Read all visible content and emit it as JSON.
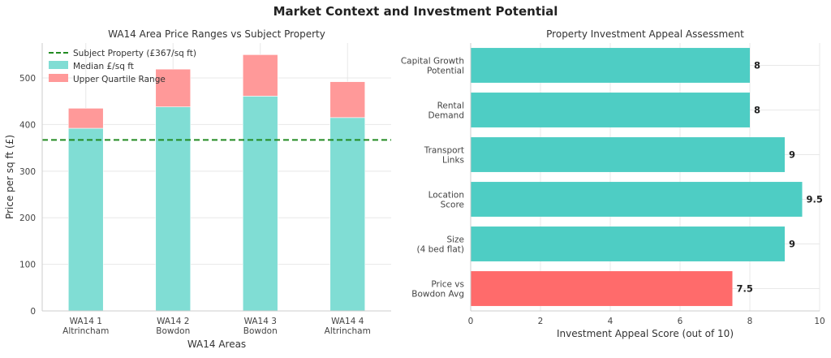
{
  "title": "Market Context and Investment Potential",
  "chart_data": [
    {
      "type": "bar",
      "title": "WA14 Area Price Ranges vs Subject Property",
      "xlabel": "WA14 Areas",
      "ylabel": "Price per sq ft (£)",
      "categories": [
        "WA14 1\nAltrincham",
        "WA14 2\nBowdon",
        "WA14 3\nBowdon",
        "WA14 4\nAltrincham"
      ],
      "stacked": true,
      "series": [
        {
          "name": "Median £/sq ft",
          "values": [
            392,
            438,
            461,
            415
          ],
          "color": "#80ddd4"
        },
        {
          "name": "Upper Quartile Range",
          "values": [
            43,
            81,
            89,
            77
          ],
          "color": "#ff9999"
        }
      ],
      "reference_line": {
        "name": "Subject Property (£367/sq ft)",
        "value": 367,
        "color": "#228B22",
        "style": "dashed"
      },
      "ylim": [
        0,
        575
      ],
      "yticks": [
        0,
        100,
        200,
        300,
        400,
        500
      ],
      "grid": true,
      "legend": "top-left"
    },
    {
      "type": "bar",
      "orientation": "horizontal",
      "title": "Property Investment Appeal Assessment",
      "xlabel": "Investment Appeal Score (out of 10)",
      "categories": [
        "Capital Growth\nPotential",
        "Rental\nDemand",
        "Transport\nLinks",
        "Location\nScore",
        "Size\n(4 bed flat)",
        "Price vs\nBowdon Avg"
      ],
      "values": [
        8,
        8,
        9,
        9.5,
        9,
        7.5
      ],
      "value_labels": [
        "8",
        "8",
        "9",
        "9.5",
        "9",
        "7.5"
      ],
      "colors": [
        "#4ecdc4",
        "#4ecdc4",
        "#4ecdc4",
        "#4ecdc4",
        "#4ecdc4",
        "#ff6b6b"
      ],
      "xlim": [
        0,
        10
      ],
      "xticks": [
        0,
        2,
        4,
        6,
        8,
        10
      ],
      "grid": true
    }
  ]
}
